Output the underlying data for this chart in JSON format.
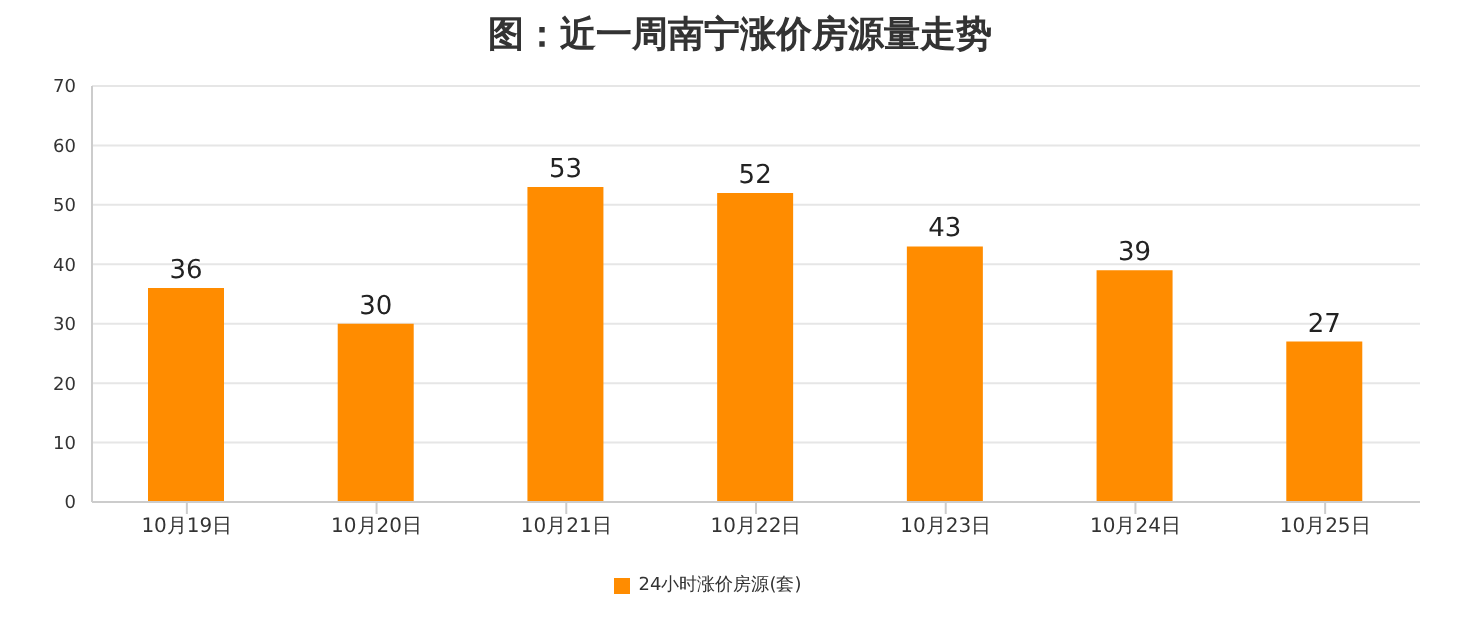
{
  "chart_data": {
    "type": "bar",
    "title": "图：近一周南宁涨价房源量走势",
    "categories": [
      "10月19日",
      "10月20日",
      "10月21日",
      "10月22日",
      "10月23日",
      "10月24日",
      "10月25日"
    ],
    "series": [
      {
        "name": "24小时涨价房源(套)",
        "color": "#ff8c00",
        "values": [
          36,
          30,
          53,
          52,
          43,
          39,
          27
        ]
      }
    ],
    "ylim": [
      0,
      70
    ],
    "yticks": [
      0,
      10,
      20,
      30,
      40,
      50,
      60,
      70
    ],
    "grid": "y",
    "legend": "bottom",
    "data_labels": true
  }
}
